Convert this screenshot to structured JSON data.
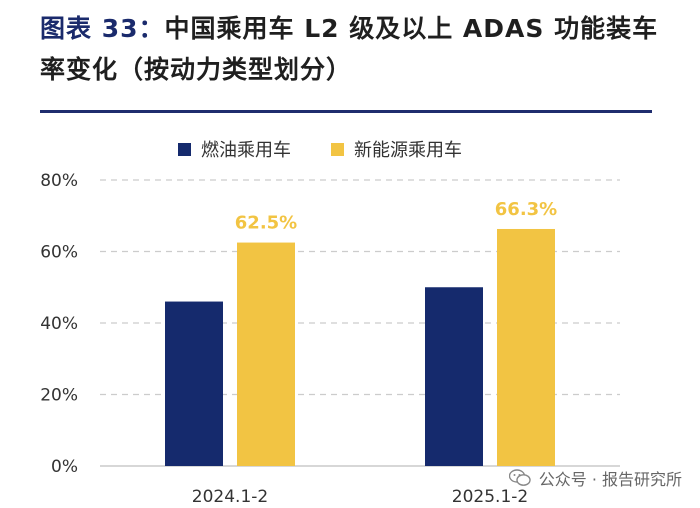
{
  "title": {
    "figure_label": "图表 33：",
    "text": "中国乘用车 L2 级及以上 ADAS 功能装车率变化（按动力类型划分）"
  },
  "watermark": {
    "text": "公众号 · 报告研究所"
  },
  "colors": {
    "fuel": "#152a6d",
    "nev": "#f2c443",
    "label": "#f2c443",
    "grid": "#cccccc",
    "rule": "#1f2d6e"
  },
  "chart_data": {
    "type": "bar",
    "categories": [
      "2024.1-2",
      "2025.1-2"
    ],
    "series": [
      {
        "name": "燃油乘用车",
        "values": [
          46,
          50
        ]
      },
      {
        "name": "新能源乘用车",
        "values": [
          62.5,
          66.3
        ]
      }
    ],
    "data_labels": [
      {
        "series": "新能源乘用车",
        "category": "2024.1-2",
        "text": "62.5%"
      },
      {
        "series": "新能源乘用车",
        "category": "2025.1-2",
        "text": "66.3%"
      }
    ],
    "y_ticks": [
      "0%",
      "20%",
      "40%",
      "60%",
      "80%"
    ],
    "ylim": [
      0,
      80
    ],
    "grid": true,
    "legend_position": "top"
  }
}
